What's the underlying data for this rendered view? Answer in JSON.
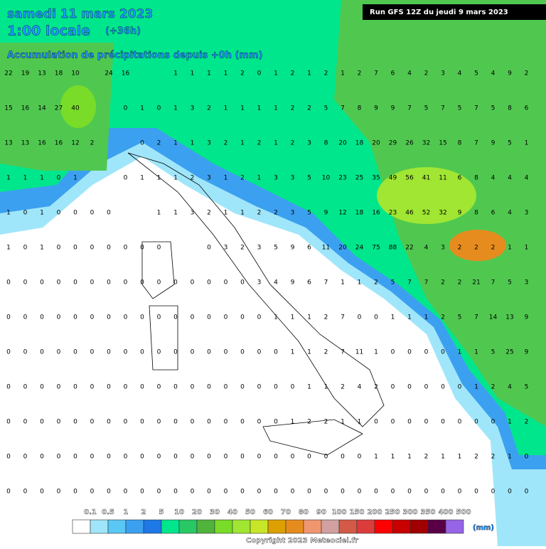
{
  "header": {
    "date": "samedi 11 mars 2023",
    "time": "1:00 locale",
    "lead": "(+36h)",
    "subtitle": "Accumulation de précipitations depuis +0h (mm)",
    "run": "Run GFS 12Z du jeudi 9 mars 2023"
  },
  "legend": {
    "labels": [
      0.1,
      0.5,
      1,
      2,
      5,
      10,
      20,
      30,
      40,
      50,
      60,
      70,
      80,
      90,
      100,
      150,
      200,
      250,
      300,
      350,
      400,
      500
    ],
    "colors": [
      "#ffffff",
      "#a0e6fa",
      "#5ac8f5",
      "#3ca0f0",
      "#1e78e6",
      "#00e68c",
      "#28c864",
      "#50b43c",
      "#78dc28",
      "#a0e632",
      "#c8e628",
      "#dca000",
      "#e68c1e",
      "#f0966e",
      "#d2a0a0",
      "#d25a46",
      "#dc3c3c",
      "#ff0000",
      "#c80000",
      "#a00000",
      "#5a0046",
      "#9664e6"
    ],
    "unit": "(mm)"
  },
  "footer": {
    "copyright": "Copyright 2023 Meteociel.fr"
  },
  "grid": {
    "rows": [
      [
        22,
        19,
        13,
        18,
        10,
        null,
        24,
        16,
        null,
        null,
        1,
        1,
        1,
        1,
        2,
        0,
        1,
        2,
        1,
        2,
        1,
        2,
        7,
        6,
        4,
        2,
        3,
        4,
        5,
        4,
        9,
        2
      ],
      [
        15,
        16,
        14,
        27,
        40,
        null,
        null,
        0,
        1,
        0,
        1,
        3,
        2,
        1,
        1,
        1,
        1,
        2,
        2,
        5,
        7,
        8,
        9,
        9,
        7,
        5,
        7,
        5,
        7,
        5,
        8,
        6
      ],
      [
        13,
        13,
        16,
        16,
        12,
        2,
        null,
        null,
        0,
        2,
        1,
        1,
        3,
        2,
        1,
        2,
        1,
        2,
        3,
        8,
        20,
        18,
        20,
        29,
        26,
        32,
        15,
        8,
        7,
        9,
        5,
        1
      ],
      [
        1,
        1,
        1,
        0,
        1,
        null,
        null,
        0,
        1,
        1,
        1,
        2,
        3,
        1,
        2,
        1,
        3,
        3,
        5,
        10,
        23,
        25,
        35,
        49,
        56,
        41,
        11,
        6,
        8,
        4,
        4,
        4
      ],
      [
        1,
        0,
        1,
        0,
        0,
        0,
        0,
        null,
        null,
        1,
        1,
        3,
        2,
        1,
        1,
        2,
        2,
        3,
        5,
        9,
        12,
        18,
        16,
        23,
        46,
        52,
        32,
        9,
        8,
        6,
        4,
        3
      ],
      [
        1,
        0,
        1,
        0,
        0,
        0,
        0,
        0,
        0,
        0,
        null,
        null,
        0,
        3,
        2,
        3,
        5,
        9,
        6,
        11,
        20,
        24,
        75,
        88,
        22,
        4,
        3,
        2,
        2,
        2,
        1,
        1
      ],
      [
        0,
        0,
        0,
        0,
        0,
        0,
        0,
        0,
        0,
        0,
        0,
        0,
        0,
        0,
        0,
        3,
        4,
        9,
        6,
        7,
        1,
        1,
        2,
        5,
        7,
        7,
        2,
        2,
        21,
        7,
        5,
        3
      ],
      [
        0,
        0,
        0,
        0,
        0,
        0,
        0,
        0,
        0,
        0,
        0,
        0,
        0,
        0,
        0,
        0,
        1,
        1,
        1,
        2,
        7,
        0,
        0,
        1,
        1,
        1,
        2,
        5,
        7,
        14,
        13,
        9
      ],
      [
        0,
        0,
        0,
        0,
        0,
        0,
        0,
        0,
        0,
        0,
        0,
        0,
        0,
        0,
        0,
        0,
        0,
        1,
        1,
        2,
        7,
        11,
        1,
        0,
        0,
        0,
        0,
        1,
        1,
        5,
        25,
        9
      ],
      [
        0,
        0,
        0,
        0,
        0,
        0,
        0,
        0,
        0,
        0,
        0,
        0,
        0,
        0,
        0,
        0,
        0,
        0,
        1,
        1,
        2,
        4,
        2,
        0,
        0,
        0,
        0,
        0,
        1,
        2,
        4,
        5
      ],
      [
        0,
        0,
        0,
        0,
        0,
        0,
        0,
        0,
        0,
        0,
        0,
        0,
        0,
        0,
        0,
        0,
        0,
        1,
        2,
        2,
        1,
        1,
        0,
        0,
        0,
        0,
        0,
        0,
        0,
        0,
        1,
        2
      ],
      [
        0,
        0,
        0,
        0,
        0,
        0,
        0,
        0,
        0,
        0,
        0,
        0,
        0,
        0,
        0,
        0,
        0,
        0,
        0,
        0,
        0,
        0,
        1,
        1,
        1,
        2,
        1,
        1,
        2,
        2,
        1,
        0
      ],
      [
        0,
        0,
        0,
        0,
        0,
        0,
        0,
        0,
        0,
        0,
        0,
        0,
        0,
        0,
        0,
        0,
        0,
        0,
        0,
        0,
        0,
        0,
        0,
        0,
        0,
        0,
        0,
        0,
        0,
        0,
        0,
        0
      ]
    ]
  }
}
